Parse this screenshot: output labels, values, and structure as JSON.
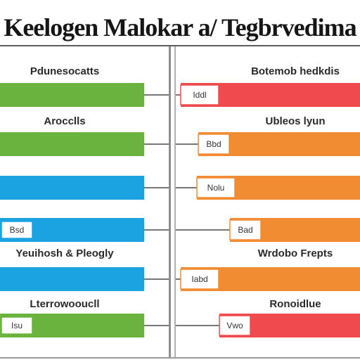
{
  "title": "Keelogen Malokar a/ Tegbrvedima",
  "colors": {
    "green": "#6ab33e",
    "blue": "#1aa3e0",
    "red": "#f14a4e",
    "orange": "#f28c33",
    "divider": "#8d8d8d",
    "connector": "#777777"
  },
  "chart_data": {
    "type": "bar",
    "panels": [
      {
        "side": "left",
        "rows": [
          {
            "label": "Pdunesocatts",
            "color": "green",
            "tag": "",
            "value": 205
          },
          {
            "label": "Arocclls",
            "color": "green",
            "tag": "",
            "value": 205
          },
          {
            "label": "",
            "color": "blue",
            "tag": "",
            "value": 205
          },
          {
            "label": "",
            "color": "blue",
            "tag": "Bsd",
            "value": 205
          },
          {
            "label": "Yeuihosh & Pleogly",
            "color": "blue",
            "tag": "",
            "value": 205
          },
          {
            "label": "Lterrowooucll",
            "color": "green",
            "tag": "Isu",
            "value": 205
          }
        ]
      },
      {
        "side": "right",
        "rows": [
          {
            "label": "Botemob hedkdis",
            "color": "red",
            "tag": "Iddl",
            "value": 255
          },
          {
            "label": "Ubleos lyun",
            "color": "orange",
            "tag": "Bbd",
            "value": 230
          },
          {
            "label": "",
            "color": "orange",
            "tag": "Nolu",
            "value": 232
          },
          {
            "label": "",
            "color": "orange",
            "tag": "Bad",
            "value": 185
          },
          {
            "label": "Wrdobo Frepts",
            "color": "orange",
            "tag": "Iabd",
            "value": 255
          },
          {
            "label": "Ronoidlue",
            "color": "red",
            "tag": "Vwo",
            "value": 200
          }
        ]
      }
    ]
  }
}
